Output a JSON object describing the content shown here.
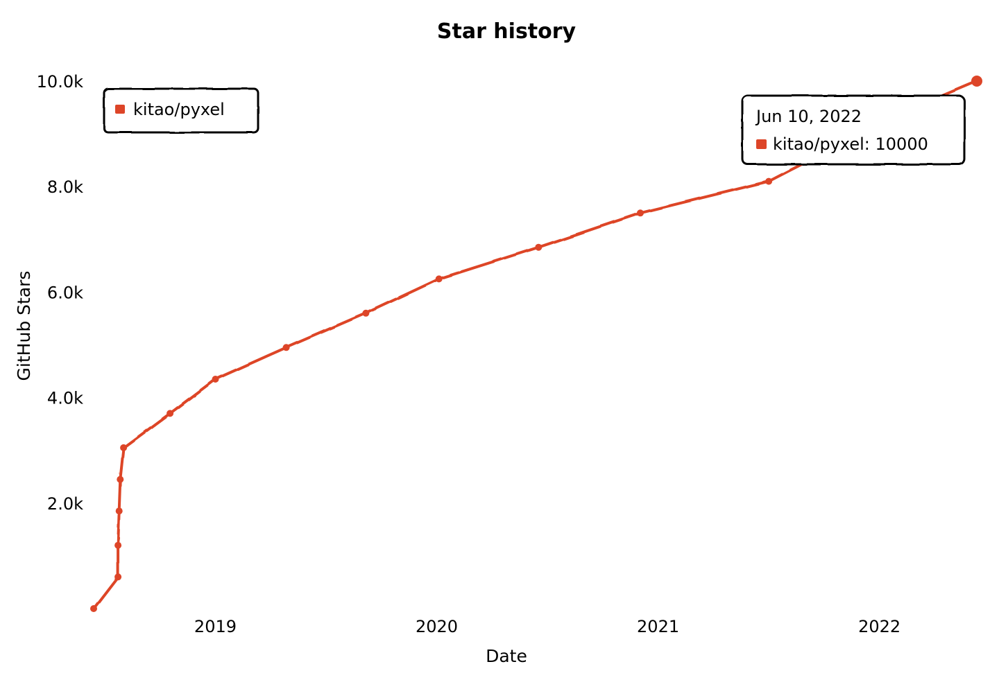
{
  "chart_data": {
    "type": "line",
    "title": "Star history",
    "xlabel": "Date",
    "ylabel": "GitHub Stars",
    "x_unit": "year",
    "xlim": [
      2018.45,
      2022.44
    ],
    "ylim": [
      0,
      10000
    ],
    "x_ticks": [
      {
        "value": 2019,
        "label": "2019"
      },
      {
        "value": 2020,
        "label": "2020"
      },
      {
        "value": 2021,
        "label": "2021"
      },
      {
        "value": 2022,
        "label": "2022"
      }
    ],
    "y_ticks": [
      {
        "value": 2000,
        "label": "2.0k"
      },
      {
        "value": 4000,
        "label": "4.0k"
      },
      {
        "value": 6000,
        "label": "6.0k"
      },
      {
        "value": 8000,
        "label": "8.0k"
      },
      {
        "value": 10000,
        "label": "10.0k"
      }
    ],
    "legend": {
      "position": "top-left",
      "entries": [
        "kitao/pyxel"
      ]
    },
    "series": [
      {
        "name": "kitao/pyxel",
        "color": "#dd4528",
        "points": [
          {
            "x": 2018.45,
            "y": 0
          },
          {
            "x": 2018.56,
            "y": 600
          },
          {
            "x": 2018.56,
            "y": 1200
          },
          {
            "x": 2018.565,
            "y": 1850
          },
          {
            "x": 2018.57,
            "y": 2450
          },
          {
            "x": 2018.585,
            "y": 3050
          },
          {
            "x": 2018.795,
            "y": 3700
          },
          {
            "x": 2019.0,
            "y": 4350
          },
          {
            "x": 2019.32,
            "y": 4950
          },
          {
            "x": 2019.68,
            "y": 5600
          },
          {
            "x": 2020.01,
            "y": 6250
          },
          {
            "x": 2020.46,
            "y": 6850
          },
          {
            "x": 2020.92,
            "y": 7500
          },
          {
            "x": 2021.5,
            "y": 8100
          },
          {
            "x": 2022.1,
            "y": 9400
          },
          {
            "x": 2022.44,
            "y": 10000
          }
        ]
      }
    ],
    "tooltip": {
      "date": "Jun 10, 2022",
      "series": "kitao/pyxel",
      "value": 10000,
      "text": "kitao/pyxel: 10000"
    }
  }
}
